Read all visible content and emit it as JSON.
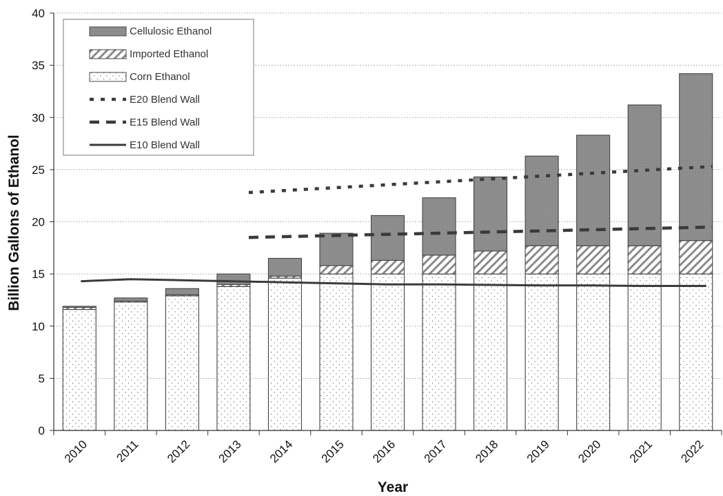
{
  "chart_data": {
    "type": "bar",
    "stacked": true,
    "categories": [
      "2010",
      "2011",
      "2012",
      "2013",
      "2014",
      "2015",
      "2016",
      "2017",
      "2018",
      "2019",
      "2020",
      "2021",
      "2022"
    ],
    "series": [
      {
        "name": "Corn Ethanol",
        "kind": "bar",
        "pattern": "dots",
        "values": [
          11.6,
          12.3,
          12.9,
          13.8,
          14.6,
          15.0,
          15.0,
          15.0,
          15.0,
          15.0,
          15.0,
          15.0,
          15.0
        ]
      },
      {
        "name": "Imported Ethanol",
        "kind": "bar",
        "pattern": "hatch",
        "values": [
          0.2,
          0.1,
          0.1,
          0.2,
          0.2,
          0.8,
          1.3,
          1.8,
          2.2,
          2.7,
          2.7,
          2.7,
          3.2
        ]
      },
      {
        "name": "Cellulosic Ethanol",
        "kind": "bar",
        "pattern": "solid-gray",
        "values": [
          0.1,
          0.3,
          0.6,
          1.0,
          1.7,
          3.1,
          4.3,
          5.5,
          7.1,
          8.6,
          10.6,
          13.5,
          16.0
        ]
      },
      {
        "name": "E20 Blend Wall",
        "kind": "line",
        "dash": "dotted",
        "x": [
          "2013",
          "2022"
        ],
        "values": [
          22.8,
          25.3
        ]
      },
      {
        "name": "E15 Blend Wall",
        "kind": "line",
        "dash": "dashed",
        "x": [
          "2013",
          "2022"
        ],
        "values": [
          18.5,
          19.5
        ]
      },
      {
        "name": "E10 Blend Wall",
        "kind": "line",
        "dash": "solid",
        "x": [
          "2010",
          "2011",
          "2012",
          "2013",
          "2014",
          "2015",
          "2016",
          "2017",
          "2018",
          "2019",
          "2020",
          "2021",
          "2022"
        ],
        "values": [
          14.3,
          14.5,
          14.4,
          14.3,
          14.2,
          14.1,
          14.0,
          14.0,
          13.95,
          13.9,
          13.9,
          13.85,
          13.85
        ]
      }
    ],
    "legend_order": [
      "Cellulosic Ethanol",
      "Imported Ethanol",
      "Corn Ethanol",
      "E20 Blend Wall",
      "E15 Blend Wall",
      "E10 Blend Wall"
    ],
    "legend_position": "top-left",
    "xlabel": "Year",
    "ylabel": "Billion Gallons of Ethanol",
    "ylim": [
      0,
      40
    ],
    "yticks": [
      "0",
      "5",
      "10",
      "15",
      "20",
      "25",
      "30",
      "35",
      "40"
    ],
    "grid": true
  }
}
